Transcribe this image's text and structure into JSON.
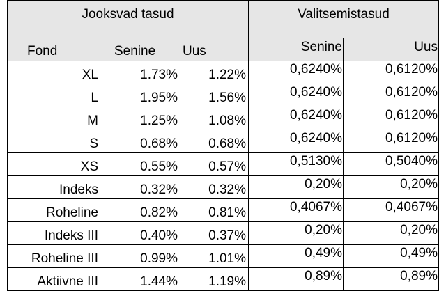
{
  "headers": {
    "group_running": "Jooksvad tasud",
    "group_selection": "Valitsemistasud",
    "fund": "Fond",
    "running_current": "Senine",
    "running_new": "Uus",
    "selection_current": "Senine",
    "selection_new": "Uus"
  },
  "rows": [
    {
      "fund": "XL",
      "running_current": "1.73%",
      "running_new": "1.22%",
      "selection_current": "0,6240%",
      "selection_new": "0,6120%"
    },
    {
      "fund": "L",
      "running_current": "1.95%",
      "running_new": "1.56%",
      "selection_current": "0,6240%",
      "selection_new": "0,6120%"
    },
    {
      "fund": "M",
      "running_current": "1.25%",
      "running_new": "1.08%",
      "selection_current": "0,6240%",
      "selection_new": "0,6120%"
    },
    {
      "fund": "S",
      "running_current": "0.68%",
      "running_new": "0.68%",
      "selection_current": "0,6240%",
      "selection_new": "0,6120%"
    },
    {
      "fund": "XS",
      "running_current": "0.55%",
      "running_new": "0.57%",
      "selection_current": "0,5130%",
      "selection_new": "0,5040%"
    },
    {
      "fund": "Indeks",
      "running_current": "0.32%",
      "running_new": "0.32%",
      "selection_current": "0,20%",
      "selection_new": "0,20%"
    },
    {
      "fund": "Roheline",
      "running_current": "0.82%",
      "running_new": "0.81%",
      "selection_current": "0,4067%",
      "selection_new": "0,4067%"
    },
    {
      "fund": "Indeks III",
      "running_current": "0.40%",
      "running_new": "0.37%",
      "selection_current": "0,20%",
      "selection_new": "0,20%"
    },
    {
      "fund": "Roheline III",
      "running_current": "0.99%",
      "running_new": "1.01%",
      "selection_current": "0,49%",
      "selection_new": "0,49%"
    },
    {
      "fund": "Aktiivne III",
      "running_current": "1.44%",
      "running_new": "1.19%",
      "selection_current": "0,89%",
      "selection_new": "0,89%"
    }
  ]
}
